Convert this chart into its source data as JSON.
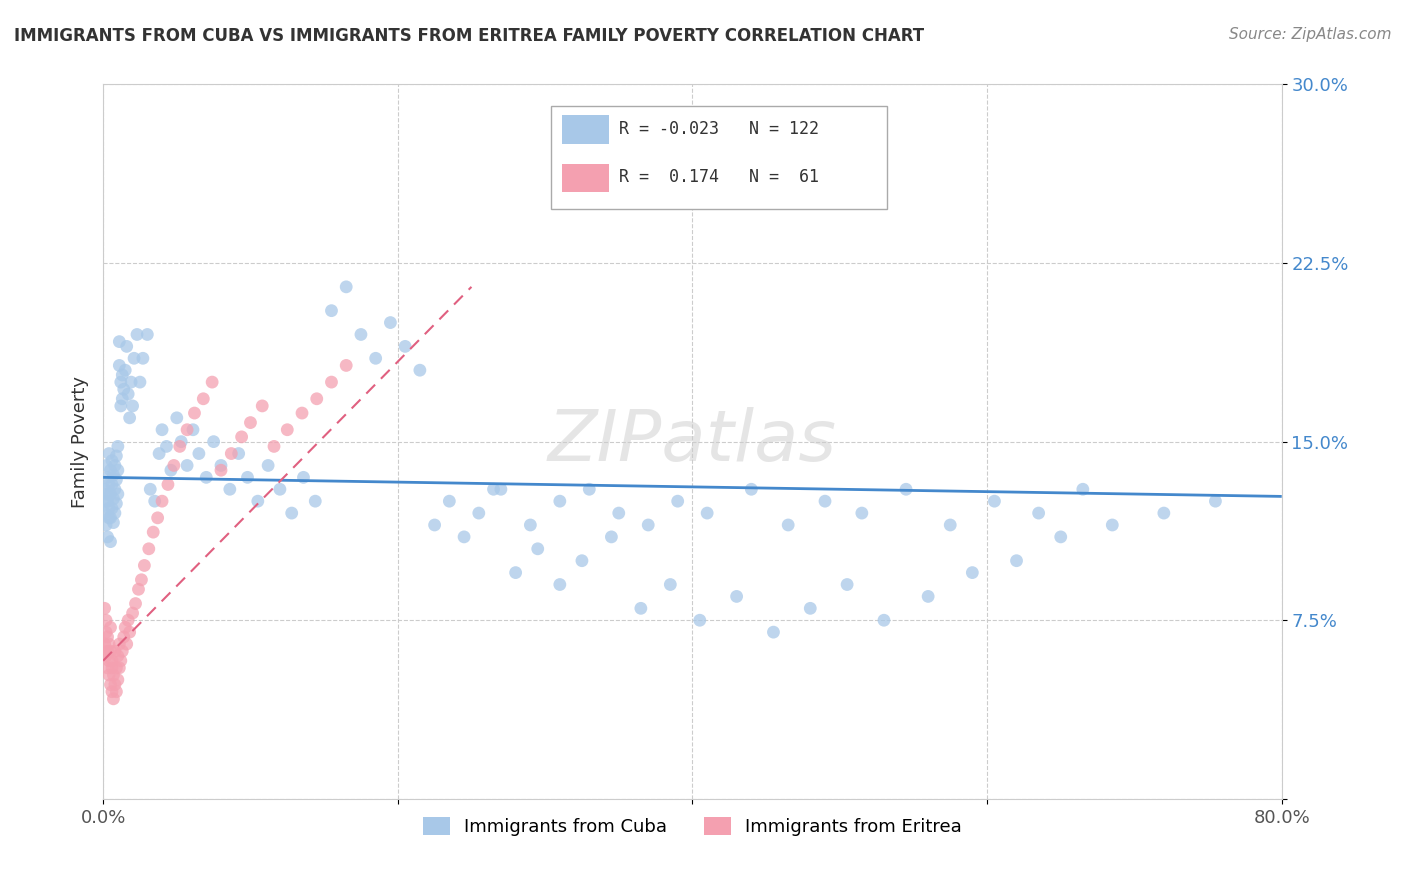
{
  "title": "IMMIGRANTS FROM CUBA VS IMMIGRANTS FROM ERITREA FAMILY POVERTY CORRELATION CHART",
  "source": "Source: ZipAtlas.com",
  "ylabel": "Family Poverty",
  "xlim": [
    0.0,
    0.8
  ],
  "ylim": [
    0.0,
    0.3
  ],
  "cuba_color": "#a8c8e8",
  "eritrea_color": "#f4a0b0",
  "cuba_line_color": "#4488cc",
  "eritrea_line_color": "#e06080",
  "grid_color": "#cccccc",
  "R_cuba": -0.023,
  "N_cuba": 122,
  "R_eritrea": 0.174,
  "N_eritrea": 61,
  "cuba_x": [
    0.001,
    0.001,
    0.002,
    0.002,
    0.002,
    0.003,
    0.003,
    0.003,
    0.003,
    0.004,
    0.004,
    0.004,
    0.004,
    0.005,
    0.005,
    0.005,
    0.005,
    0.006,
    0.006,
    0.006,
    0.007,
    0.007,
    0.007,
    0.008,
    0.008,
    0.008,
    0.009,
    0.009,
    0.009,
    0.01,
    0.01,
    0.01,
    0.011,
    0.011,
    0.012,
    0.012,
    0.013,
    0.013,
    0.014,
    0.015,
    0.016,
    0.017,
    0.018,
    0.019,
    0.02,
    0.021,
    0.023,
    0.025,
    0.027,
    0.03,
    0.032,
    0.035,
    0.038,
    0.04,
    0.043,
    0.046,
    0.05,
    0.053,
    0.057,
    0.061,
    0.065,
    0.07,
    0.075,
    0.08,
    0.086,
    0.092,
    0.098,
    0.105,
    0.112,
    0.12,
    0.128,
    0.136,
    0.144,
    0.155,
    0.165,
    0.175,
    0.185,
    0.195,
    0.205,
    0.215,
    0.225,
    0.235,
    0.245,
    0.255,
    0.265,
    0.28,
    0.295,
    0.31,
    0.325,
    0.345,
    0.365,
    0.385,
    0.405,
    0.43,
    0.455,
    0.48,
    0.505,
    0.53,
    0.56,
    0.59,
    0.62,
    0.65,
    0.685,
    0.72,
    0.755,
    0.27,
    0.29,
    0.31,
    0.33,
    0.35,
    0.37,
    0.39,
    0.41,
    0.44,
    0.465,
    0.49,
    0.515,
    0.545,
    0.575,
    0.605,
    0.635,
    0.665
  ],
  "cuba_y": [
    0.13,
    0.12,
    0.14,
    0.125,
    0.115,
    0.135,
    0.125,
    0.11,
    0.128,
    0.118,
    0.132,
    0.122,
    0.145,
    0.128,
    0.118,
    0.138,
    0.108,
    0.132,
    0.122,
    0.142,
    0.126,
    0.116,
    0.136,
    0.13,
    0.12,
    0.14,
    0.134,
    0.124,
    0.144,
    0.138,
    0.128,
    0.148,
    0.182,
    0.192,
    0.175,
    0.165,
    0.178,
    0.168,
    0.172,
    0.18,
    0.19,
    0.17,
    0.16,
    0.175,
    0.165,
    0.185,
    0.195,
    0.175,
    0.185,
    0.195,
    0.13,
    0.125,
    0.145,
    0.155,
    0.148,
    0.138,
    0.16,
    0.15,
    0.14,
    0.155,
    0.145,
    0.135,
    0.15,
    0.14,
    0.13,
    0.145,
    0.135,
    0.125,
    0.14,
    0.13,
    0.12,
    0.135,
    0.125,
    0.205,
    0.215,
    0.195,
    0.185,
    0.2,
    0.19,
    0.18,
    0.115,
    0.125,
    0.11,
    0.12,
    0.13,
    0.095,
    0.105,
    0.09,
    0.1,
    0.11,
    0.08,
    0.09,
    0.075,
    0.085,
    0.07,
    0.08,
    0.09,
    0.075,
    0.085,
    0.095,
    0.1,
    0.11,
    0.115,
    0.12,
    0.125,
    0.13,
    0.115,
    0.125,
    0.13,
    0.12,
    0.115,
    0.125,
    0.12,
    0.13,
    0.115,
    0.125,
    0.12,
    0.13,
    0.115,
    0.125,
    0.12,
    0.13
  ],
  "eritrea_x": [
    0.001,
    0.001,
    0.002,
    0.002,
    0.002,
    0.003,
    0.003,
    0.003,
    0.004,
    0.004,
    0.004,
    0.005,
    0.005,
    0.005,
    0.006,
    0.006,
    0.006,
    0.007,
    0.007,
    0.008,
    0.008,
    0.009,
    0.009,
    0.01,
    0.01,
    0.011,
    0.011,
    0.012,
    0.013,
    0.014,
    0.015,
    0.016,
    0.017,
    0.018,
    0.02,
    0.022,
    0.024,
    0.026,
    0.028,
    0.031,
    0.034,
    0.037,
    0.04,
    0.044,
    0.048,
    0.052,
    0.057,
    0.062,
    0.068,
    0.074,
    0.08,
    0.087,
    0.094,
    0.1,
    0.108,
    0.116,
    0.125,
    0.135,
    0.145,
    0.155,
    0.165
  ],
  "eritrea_y": [
    0.08,
    0.065,
    0.07,
    0.06,
    0.075,
    0.062,
    0.055,
    0.068,
    0.058,
    0.052,
    0.065,
    0.048,
    0.062,
    0.072,
    0.055,
    0.045,
    0.058,
    0.042,
    0.052,
    0.048,
    0.062,
    0.045,
    0.055,
    0.05,
    0.06,
    0.055,
    0.065,
    0.058,
    0.062,
    0.068,
    0.072,
    0.065,
    0.075,
    0.07,
    0.078,
    0.082,
    0.088,
    0.092,
    0.098,
    0.105,
    0.112,
    0.118,
    0.125,
    0.132,
    0.14,
    0.148,
    0.155,
    0.162,
    0.168,
    0.175,
    0.138,
    0.145,
    0.152,
    0.158,
    0.165,
    0.148,
    0.155,
    0.162,
    0.168,
    0.175,
    0.182
  ],
  "eritrea_trendline_x": [
    0.0,
    0.25
  ],
  "eritrea_trendline_y": [
    0.058,
    0.215
  ],
  "cuba_trendline_x": [
    0.0,
    0.8
  ],
  "cuba_trendline_y": [
    0.135,
    0.127
  ]
}
